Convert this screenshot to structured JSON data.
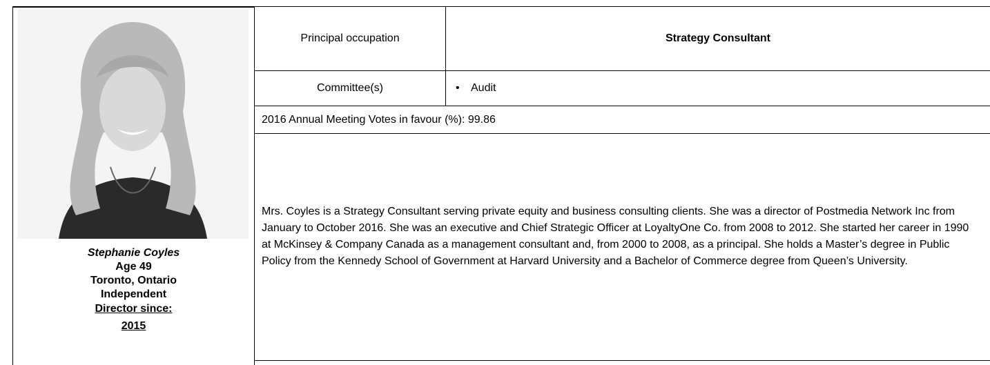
{
  "profile": {
    "name": "Stephanie Coyles",
    "age": "Age 49",
    "location": "Toronto, Ontario",
    "status": "Independent",
    "director_since_label": "Director since:",
    "director_since_year": "2015"
  },
  "table": {
    "occupation_label": "Principal occupation",
    "occupation": "Strategy Consultant",
    "committees_label": "Committee(s)",
    "committees": [
      "Audit"
    ],
    "votes_label": "2016 Annual Meeting Votes in favour (%):",
    "votes_value": 99.86,
    "bio": "Mrs. Coyles is a Strategy Consultant serving private equity and business consulting clients. She was a director of Postmedia Network Inc from January to October 2016. She was an executive and Chief Strategic Officer at LoyaltyOne Co. from 2008 to 2012. She started her career in 1990 at McKinsey & Company Canada as a management consultant and, from 2000 to 2008, as a principal. She holds a Master’s degree in Public Policy from the Kennedy School of Government at Harvard University and a Bachelor of Commerce degree from Queen’s University."
  }
}
